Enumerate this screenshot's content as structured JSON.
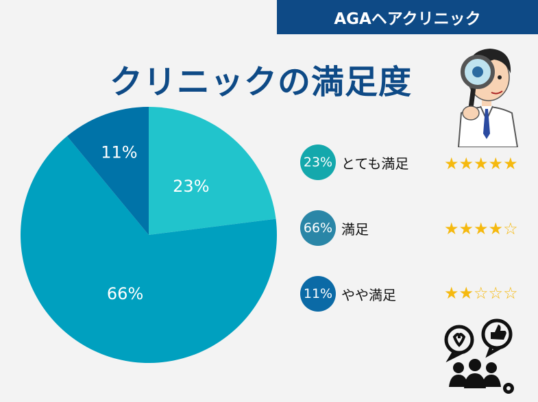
{
  "banner": {
    "text": "AGAヘアクリニック"
  },
  "title": "クリニックの満足度",
  "chart_data": {
    "type": "pie",
    "slices": [
      {
        "label": "とても満足",
        "value": 23,
        "display": "23%",
        "color": "#21c4cc"
      },
      {
        "label": "満足",
        "value": 66,
        "display": "66%",
        "color": "#00a0bf"
      },
      {
        "label": "やや満足",
        "value": 11,
        "display": "11%",
        "color": "#0073a8"
      }
    ]
  },
  "legend": [
    {
      "pct": "23%",
      "label": "とても満足",
      "color": "#14a8ac",
      "stars": 5
    },
    {
      "pct": "66%",
      "label": "満足",
      "color": "#2a86a7",
      "stars": 4
    },
    {
      "pct": "11%",
      "label": "やや満足",
      "color": "#0b6aa6",
      "stars": 2
    }
  ],
  "icons": {
    "doctor": "doctor-with-magnifier-icon",
    "people": "people-feedback-icon"
  },
  "colors": {
    "brand": "#0e4a86",
    "star": "#f5b90f"
  }
}
